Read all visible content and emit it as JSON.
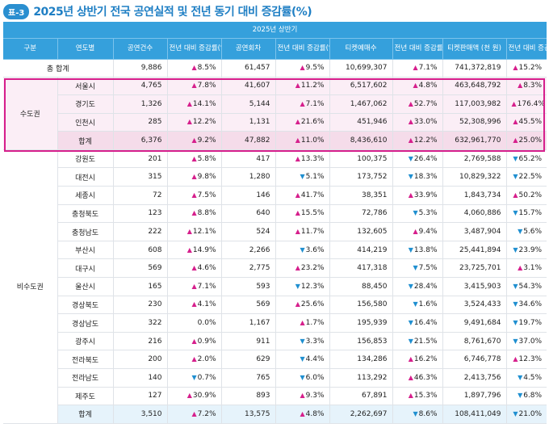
{
  "header": {
    "badge": "표-3",
    "title": "2025년 상반기 전국 공연실적 및 전년 동기 대비 증감률(%)"
  },
  "table": {
    "period_label": "2025년 상반기",
    "columns": {
      "category": "구분",
      "region": "연도별",
      "performances": "공연건수",
      "perf_change": "전년 대비 증감률(%)",
      "shows": "공연회차",
      "shows_change": "전년 대비 증감률(%)",
      "tickets": "티켓예매수",
      "tickets_change": "전년 대비 증감률(%)",
      "sales": "티켓판매액 (천 원)",
      "sales_change": "전년 대비 증감률(%)"
    },
    "grand_total": {
      "label": "총 합계",
      "performances": "9,886",
      "perf_change": "8.5%",
      "perf_dir": "up",
      "shows": "61,457",
      "shows_change": "9.5%",
      "shows_dir": "up",
      "tickets": "10,699,307",
      "tickets_change": "7.1%",
      "tickets_dir": "up",
      "sales": "741,372,819",
      "sales_change": "15.2%",
      "sales_dir": "up"
    },
    "metro": {
      "label": "수도권",
      "rows": [
        {
          "region": "서울시",
          "performances": "4,765",
          "perf_change": "7.8%",
          "perf_dir": "up",
          "shows": "41,607",
          "shows_change": "11.2%",
          "shows_dir": "up",
          "tickets": "6,517,602",
          "tickets_change": "4.8%",
          "tickets_dir": "up",
          "sales": "463,648,792",
          "sales_change": "8.3%",
          "sales_dir": "up"
        },
        {
          "region": "경기도",
          "performances": "1,326",
          "perf_change": "14.1%",
          "perf_dir": "up",
          "shows": "5,144",
          "shows_change": "7.1%",
          "shows_dir": "up",
          "tickets": "1,467,062",
          "tickets_change": "52.7%",
          "tickets_dir": "up",
          "sales": "117,003,982",
          "sales_change": "176.4%",
          "sales_dir": "up"
        },
        {
          "region": "인천시",
          "performances": "285",
          "perf_change": "12.2%",
          "perf_dir": "up",
          "shows": "1,131",
          "shows_change": "21.6%",
          "shows_dir": "up",
          "tickets": "451,946",
          "tickets_change": "33.0%",
          "tickets_dir": "up",
          "sales": "52,308,996",
          "sales_change": "45.5%",
          "sales_dir": "up"
        }
      ],
      "total": {
        "region": "합계",
        "performances": "6,376",
        "perf_change": "9.2%",
        "perf_dir": "up",
        "shows": "47,882",
        "shows_change": "11.0%",
        "shows_dir": "up",
        "tickets": "8,436,610",
        "tickets_change": "12.2%",
        "tickets_dir": "up",
        "sales": "632,961,770",
        "sales_change": "25.0%",
        "sales_dir": "up"
      }
    },
    "nonmetro": {
      "label": "비수도권",
      "rows": [
        {
          "region": "강원도",
          "performances": "201",
          "perf_change": "5.8%",
          "perf_dir": "up",
          "shows": "417",
          "shows_change": "13.3%",
          "shows_dir": "up",
          "tickets": "100,375",
          "tickets_change": "26.4%",
          "tickets_dir": "down",
          "sales": "2,769,588",
          "sales_change": "65.2%",
          "sales_dir": "down"
        },
        {
          "region": "대전시",
          "performances": "315",
          "perf_change": "9.8%",
          "perf_dir": "up",
          "shows": "1,280",
          "shows_change": "5.1%",
          "shows_dir": "down",
          "tickets": "173,752",
          "tickets_change": "18.3%",
          "tickets_dir": "down",
          "sales": "10,829,322",
          "sales_change": "22.5%",
          "sales_dir": "down"
        },
        {
          "region": "세종시",
          "performances": "72",
          "perf_change": "7.5%",
          "perf_dir": "up",
          "shows": "146",
          "shows_change": "41.7%",
          "shows_dir": "up",
          "tickets": "38,351",
          "tickets_change": "33.9%",
          "tickets_dir": "up",
          "sales": "1,843,734",
          "sales_change": "50.2%",
          "sales_dir": "up"
        },
        {
          "region": "충청북도",
          "performances": "123",
          "perf_change": "8.8%",
          "perf_dir": "up",
          "shows": "640",
          "shows_change": "15.5%",
          "shows_dir": "up",
          "tickets": "72,786",
          "tickets_change": "5.3%",
          "tickets_dir": "down",
          "sales": "4,060,886",
          "sales_change": "15.7%",
          "sales_dir": "down"
        },
        {
          "region": "충청남도",
          "performances": "222",
          "perf_change": "12.1%",
          "perf_dir": "up",
          "shows": "524",
          "shows_change": "11.7%",
          "shows_dir": "up",
          "tickets": "132,605",
          "tickets_change": "9.4%",
          "tickets_dir": "up",
          "sales": "3,487,904",
          "sales_change": "5.6%",
          "sales_dir": "down"
        },
        {
          "region": "부산시",
          "performances": "608",
          "perf_change": "14.9%",
          "perf_dir": "up",
          "shows": "2,266",
          "shows_change": "3.6%",
          "shows_dir": "down",
          "tickets": "414,219",
          "tickets_change": "13.8%",
          "tickets_dir": "down",
          "sales": "25,441,894",
          "sales_change": "23.9%",
          "sales_dir": "down"
        },
        {
          "region": "대구시",
          "performances": "569",
          "perf_change": "4.6%",
          "perf_dir": "up",
          "shows": "2,775",
          "shows_change": "23.2%",
          "shows_dir": "up",
          "tickets": "417,318",
          "tickets_change": "7.5%",
          "tickets_dir": "down",
          "sales": "23,725,701",
          "sales_change": "3.1%",
          "sales_dir": "up"
        },
        {
          "region": "울산시",
          "performances": "165",
          "perf_change": "7.1%",
          "perf_dir": "up",
          "shows": "593",
          "shows_change": "12.3%",
          "shows_dir": "down",
          "tickets": "88,450",
          "tickets_change": "28.4%",
          "tickets_dir": "down",
          "sales": "3,415,903",
          "sales_change": "54.3%",
          "sales_dir": "down"
        },
        {
          "region": "경상북도",
          "performances": "230",
          "perf_change": "4.1%",
          "perf_dir": "up",
          "shows": "569",
          "shows_change": "25.6%",
          "shows_dir": "up",
          "tickets": "156,580",
          "tickets_change": "1.6%",
          "tickets_dir": "down",
          "sales": "3,524,433",
          "sales_change": "34.6%",
          "sales_dir": "down"
        },
        {
          "region": "경상남도",
          "performances": "322",
          "perf_change": "0.0%",
          "perf_dir": "none",
          "shows": "1,167",
          "shows_change": "1.7%",
          "shows_dir": "up",
          "tickets": "195,939",
          "tickets_change": "16.4%",
          "tickets_dir": "down",
          "sales": "9,491,684",
          "sales_change": "19.7%",
          "sales_dir": "down"
        },
        {
          "region": "광주시",
          "performances": "216",
          "perf_change": "0.9%",
          "perf_dir": "up",
          "shows": "911",
          "shows_change": "3.3%",
          "shows_dir": "down",
          "tickets": "156,853",
          "tickets_change": "21.5%",
          "tickets_dir": "down",
          "sales": "8,761,670",
          "sales_change": "37.0%",
          "sales_dir": "down"
        },
        {
          "region": "전라북도",
          "performances": "200",
          "perf_change": "2.0%",
          "perf_dir": "up",
          "shows": "629",
          "shows_change": "4.4%",
          "shows_dir": "down",
          "tickets": "134,286",
          "tickets_change": "16.2%",
          "tickets_dir": "up",
          "sales": "6,746,778",
          "sales_change": "12.3%",
          "sales_dir": "up"
        },
        {
          "region": "전라남도",
          "performances": "140",
          "perf_change": "0.7%",
          "perf_dir": "down",
          "shows": "765",
          "shows_change": "6.0%",
          "shows_dir": "down",
          "tickets": "113,292",
          "tickets_change": "46.3%",
          "tickets_dir": "up",
          "sales": "2,413,756",
          "sales_change": "4.5%",
          "sales_dir": "down"
        },
        {
          "region": "제주도",
          "performances": "127",
          "perf_change": "30.9%",
          "perf_dir": "up",
          "shows": "893",
          "shows_change": "9.3%",
          "shows_dir": "up",
          "tickets": "67,891",
          "tickets_change": "15.3%",
          "tickets_dir": "up",
          "sales": "1,897,796",
          "sales_change": "6.8%",
          "sales_dir": "down"
        }
      ],
      "total": {
        "region": "합계",
        "performances": "3,510",
        "perf_change": "7.2%",
        "perf_dir": "up",
        "shows": "13,575",
        "shows_change": "4.8%",
        "shows_dir": "up",
        "tickets": "2,262,697",
        "tickets_change": "8.6%",
        "tickets_dir": "down",
        "sales": "108,411,049",
        "sales_change": "21.0%",
        "sales_dir": "down"
      }
    }
  },
  "colors": {
    "header_bg": "#35a0dc",
    "up": "#d61f8c",
    "down": "#1f8fd0",
    "metro_highlight": "#d61f8c"
  },
  "icons": {
    "up": "triangle-up-icon",
    "down": "triangle-down-icon"
  }
}
